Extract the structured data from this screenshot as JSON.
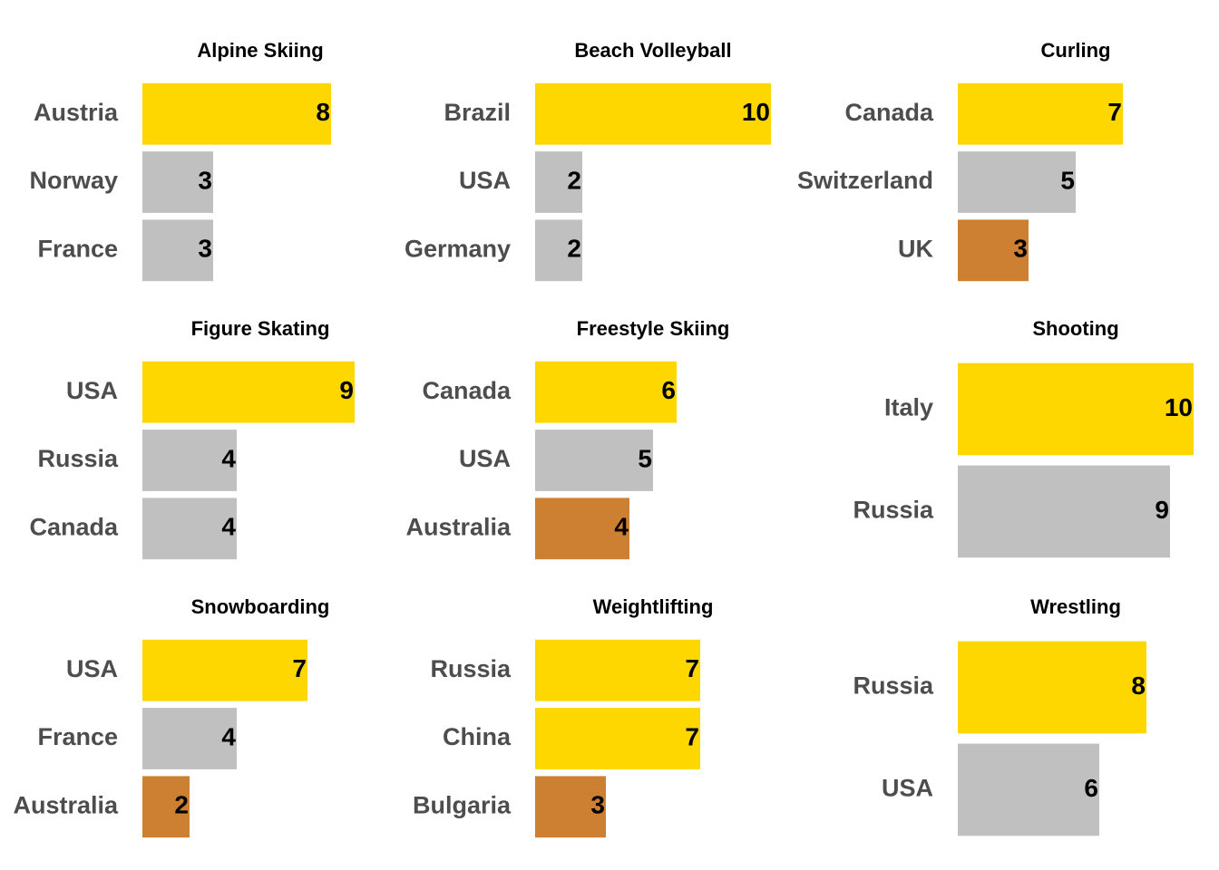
{
  "colors": {
    "gold": "#FFD700",
    "silver": "#C0C0C0",
    "bronze": "#CD7F32",
    "label": "#4D4D4D",
    "value": "#000000",
    "title": "#000000"
  },
  "chart_data": [
    {
      "type": "bar",
      "orientation": "horizontal",
      "title": "Alpine Skiing",
      "categories": [
        "Austria",
        "Norway",
        "France"
      ],
      "values": [
        8,
        3,
        3
      ],
      "medals": [
        "gold",
        "silver",
        "silver"
      ],
      "xlim": [
        0,
        10
      ]
    },
    {
      "type": "bar",
      "orientation": "horizontal",
      "title": "Beach Volleyball",
      "categories": [
        "Brazil",
        "USA",
        "Germany"
      ],
      "values": [
        10,
        2,
        2
      ],
      "medals": [
        "gold",
        "silver",
        "silver"
      ],
      "xlim": [
        0,
        10
      ]
    },
    {
      "type": "bar",
      "orientation": "horizontal",
      "title": "Curling",
      "categories": [
        "Canada",
        "Switzerland",
        "UK"
      ],
      "values": [
        7,
        5,
        3
      ],
      "medals": [
        "gold",
        "silver",
        "bronze"
      ],
      "xlim": [
        0,
        10
      ]
    },
    {
      "type": "bar",
      "orientation": "horizontal",
      "title": "Figure Skating",
      "categories": [
        "USA",
        "Russia",
        "Canada"
      ],
      "values": [
        9,
        4,
        4
      ],
      "medals": [
        "gold",
        "silver",
        "silver"
      ],
      "xlim": [
        0,
        10
      ]
    },
    {
      "type": "bar",
      "orientation": "horizontal",
      "title": "Freestyle Skiing",
      "categories": [
        "Canada",
        "USA",
        "Australia"
      ],
      "values": [
        6,
        5,
        4
      ],
      "medals": [
        "gold",
        "silver",
        "bronze"
      ],
      "xlim": [
        0,
        10
      ]
    },
    {
      "type": "bar",
      "orientation": "horizontal",
      "title": "Shooting",
      "categories": [
        "Italy",
        "Russia"
      ],
      "values": [
        10,
        9
      ],
      "medals": [
        "gold",
        "silver"
      ],
      "xlim": [
        0,
        10
      ]
    },
    {
      "type": "bar",
      "orientation": "horizontal",
      "title": "Snowboarding",
      "categories": [
        "USA",
        "France",
        "Australia"
      ],
      "values": [
        7,
        4,
        2
      ],
      "medals": [
        "gold",
        "silver",
        "bronze"
      ],
      "xlim": [
        0,
        10
      ]
    },
    {
      "type": "bar",
      "orientation": "horizontal",
      "title": "Weightlifting",
      "categories": [
        "Russia",
        "China",
        "Bulgaria"
      ],
      "values": [
        7,
        7,
        3
      ],
      "medals": [
        "gold",
        "gold",
        "bronze"
      ],
      "xlim": [
        0,
        10
      ]
    },
    {
      "type": "bar",
      "orientation": "horizontal",
      "title": "Wrestling",
      "categories": [
        "Russia",
        "USA"
      ],
      "values": [
        8,
        6
      ],
      "medals": [
        "gold",
        "silver"
      ],
      "xlim": [
        0,
        10
      ]
    }
  ]
}
